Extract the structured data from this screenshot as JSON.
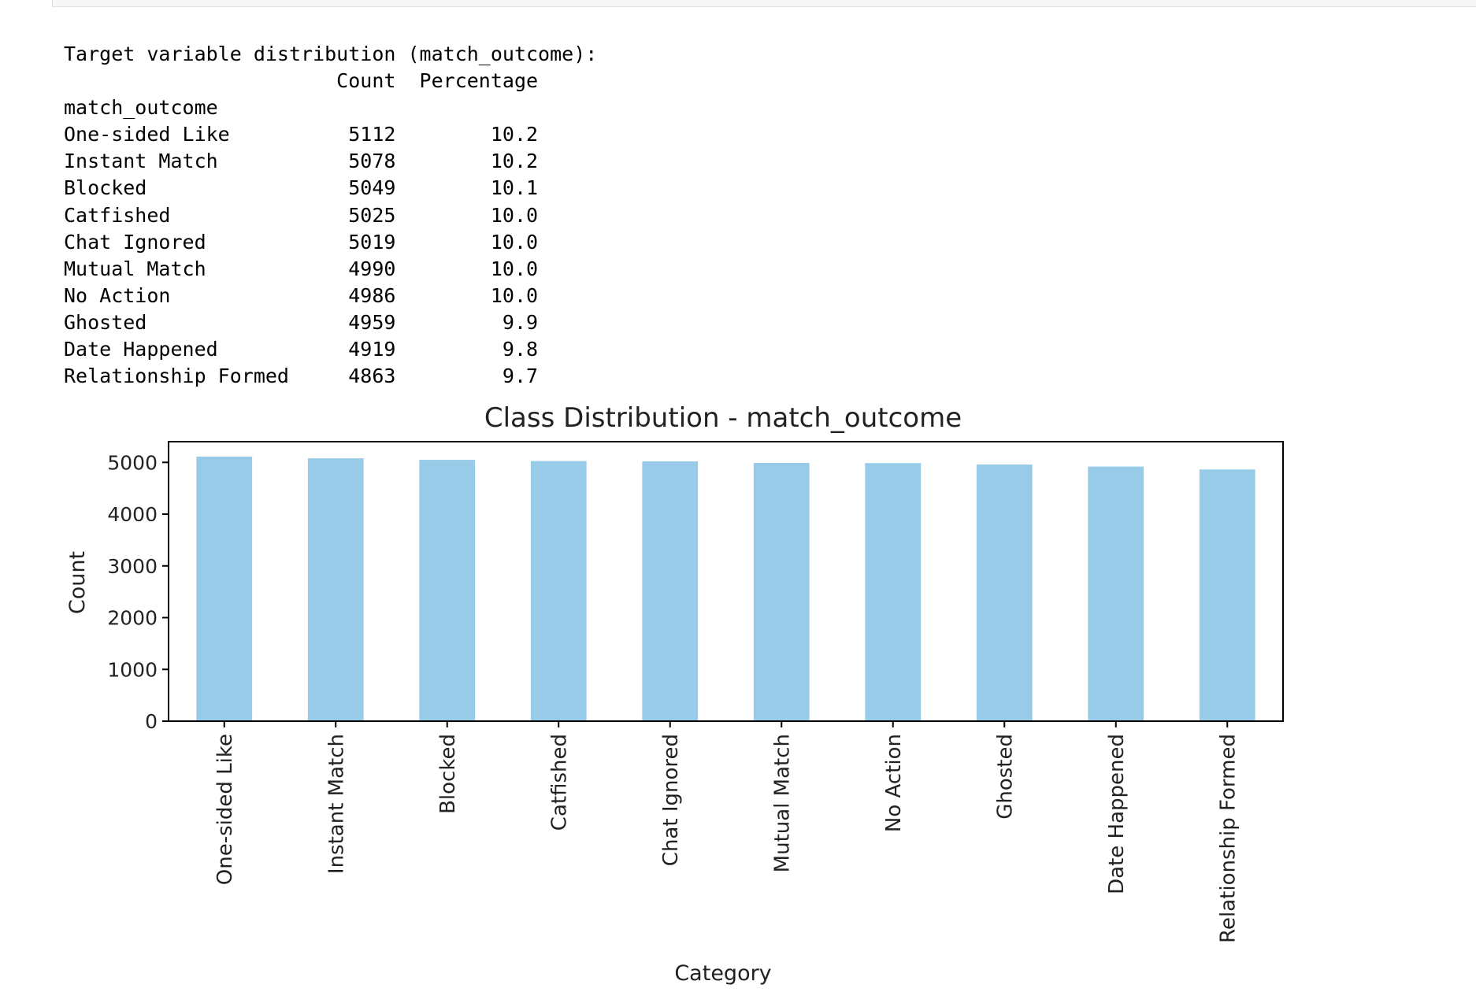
{
  "output": {
    "header": "Target variable distribution (match_outcome):",
    "columns": [
      "Count",
      "Percentage"
    ],
    "index_name": "match_outcome",
    "rows": [
      {
        "label": "One-sided Like",
        "count": "5112",
        "percentage": "10.2"
      },
      {
        "label": "Instant Match",
        "count": "5078",
        "percentage": "10.2"
      },
      {
        "label": "Blocked",
        "count": "5049",
        "percentage": "10.1"
      },
      {
        "label": "Catfished",
        "count": "5025",
        "percentage": "10.0"
      },
      {
        "label": "Chat Ignored",
        "count": "5019",
        "percentage": "10.0"
      },
      {
        "label": "Mutual Match",
        "count": "4990",
        "percentage": "10.0"
      },
      {
        "label": "No Action",
        "count": "4986",
        "percentage": "10.0"
      },
      {
        "label": "Ghosted",
        "count": "4959",
        "percentage": "9.9"
      },
      {
        "label": "Date Happened",
        "count": "4919",
        "percentage": "9.8"
      },
      {
        "label": "Relationship Formed",
        "count": "4863",
        "percentage": "9.7"
      }
    ]
  },
  "chart_data": {
    "type": "bar",
    "title": "Class Distribution - match_outcome",
    "xlabel": "Category",
    "ylabel": "Count",
    "categories": [
      "One-sided Like",
      "Instant Match",
      "Blocked",
      "Catfished",
      "Chat Ignored",
      "Mutual Match",
      "No Action",
      "Ghosted",
      "Date Happened",
      "Relationship Formed"
    ],
    "values": [
      5112,
      5078,
      5049,
      5025,
      5019,
      4990,
      4986,
      4959,
      4919,
      4863
    ],
    "ylim": [
      0,
      5400
    ],
    "yticks": [
      0,
      1000,
      2000,
      3000,
      4000,
      5000
    ],
    "bar_color": "#97cbe8",
    "grid": false,
    "legend": false
  }
}
